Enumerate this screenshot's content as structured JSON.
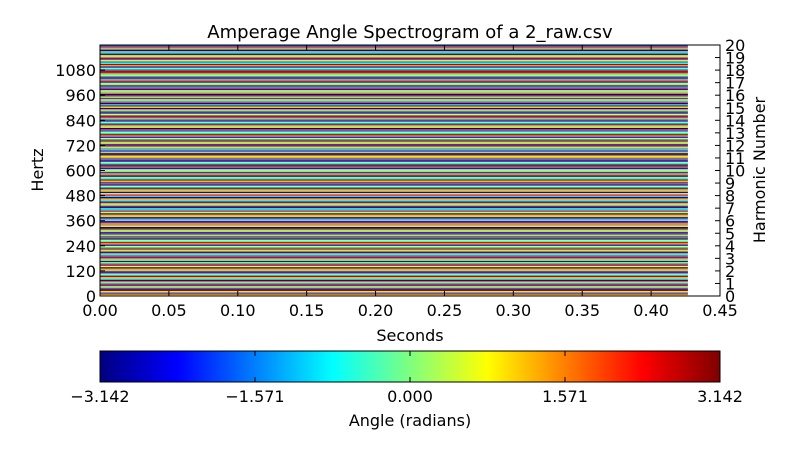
{
  "chart_data": {
    "type": "heatmap",
    "title": "Amperage Angle Spectrogram of a 2_raw.csv",
    "xlabel": "Seconds",
    "ylabel": "Hertz",
    "y2label": "Harmonic Number",
    "xlim": [
      0.0,
      0.45
    ],
    "ylim": [
      0,
      1200
    ],
    "y2lim": [
      0,
      20
    ],
    "data_x_extent": [
      0.0,
      0.4267
    ],
    "data_y_extent": [
      0,
      1200
    ],
    "x_ticks": [
      "0.00",
      "0.05",
      "0.10",
      "0.15",
      "0.20",
      "0.25",
      "0.30",
      "0.35",
      "0.40",
      "0.45"
    ],
    "y_ticks": [
      "0",
      "120",
      "240",
      "360",
      "480",
      "600",
      "720",
      "840",
      "960",
      "1080"
    ],
    "y2_ticks": [
      "0",
      "1",
      "2",
      "3",
      "4",
      "5",
      "6",
      "7",
      "8",
      "9",
      "10",
      "11",
      "12",
      "13",
      "14",
      "15",
      "16",
      "17",
      "18",
      "19",
      "20"
    ],
    "frequency_bin_hz": 6,
    "bin_angles": [
      0.4,
      2.1,
      -1.6,
      0.9,
      3.0,
      -2.6,
      1.4,
      -0.3,
      2.6,
      -1.9,
      0.1,
      1.8,
      -2.9,
      -0.9,
      1.0,
      2.8,
      -1.2,
      0.6,
      -2.4,
      2.2,
      -0.5,
      1.5,
      -3.0,
      0.8,
      2.4,
      -1.7,
      0.2,
      3.1,
      -0.8,
      1.2,
      -2.2,
      2.0,
      -1.4,
      0.5,
      -2.8,
      1.7,
      -0.1,
      2.9,
      -1.1,
      0.7,
      -2.5,
      1.3,
      2.5,
      -0.6,
      0.3,
      -3.1,
      1.9,
      -1.5,
      0.0,
      2.7,
      -2.0,
      1.1,
      -0.4,
      3.0,
      -2.7,
      0.9,
      1.6,
      -1.0,
      2.3,
      -2.3,
      0.4,
      -1.8,
      2.8,
      -0.2,
      1.4,
      -2.9,
      0.6,
      2.1,
      -1.3,
      -0.7,
      3.1,
      -2.1,
      1.0,
      -0.5,
      2.6,
      -1.6,
      0.2,
      1.8,
      -3.0,
      -0.9,
      2.4,
      0.8,
      -2.4,
      1.5,
      -0.3,
      2.9,
      -1.2,
      0.5,
      -2.6,
      2.0,
      -1.7,
      1.2,
      3.0,
      -0.6,
      0.1,
      -2.8,
      1.7,
      -1.1,
      2.5,
      -0.1,
      0.7,
      -2.2,
      1.9,
      -1.9,
      3.1,
      -0.8,
      0.3,
      -2.5,
      2.2,
      -1.4,
      1.3,
      0.9,
      -3.1,
      2.7,
      -0.4,
      -2.0,
      1.6,
      -1.0,
      0.0,
      2.3,
      -2.7,
      1.1,
      -0.2,
      2.8,
      -1.5,
      0.6,
      -2.3,
      1.4,
      3.0,
      -0.9,
      0.4,
      -1.8,
      2.1,
      -2.9,
      1.0,
      -0.5,
      2.6,
      -1.3,
      0.2,
      -2.6,
      1.8,
      -0.7,
      2.4,
      -2.1,
      0.8,
      -1.6,
      3.1,
      -0.3,
      1.5,
      -2.4,
      0.5,
      2.9,
      -1.1,
      -2.8,
      2.0,
      -0.6,
      1.2,
      -1.9,
      0.1,
      2.5,
      -3.0,
      1.7,
      -0.8,
      0.7,
      -2.2,
      2.2,
      -1.4,
      3.0,
      -0.1,
      0.3,
      -2.5,
      1.9,
      -1.0,
      2.7,
      -2.0,
      0.9,
      -0.4,
      1.6,
      -3.1,
      2.3,
      -1.2,
      0.0,
      -2.7,
      1.3,
      2.8,
      -0.6,
      -1.7,
      0.6,
      2.1,
      -2.3,
      1.0,
      -0.2,
      3.1,
      -1.5,
      0.4,
      -2.9,
      1.8,
      -0.9,
      2.4,
      -1.8,
      0.2,
      2.6,
      -2.6,
      1.4,
      -0.5,
      0.8,
      -1.3,
      3.0,
      -2.1,
      1.1,
      -0.3,
      2.0,
      -2.8,
      0.5,
      1.7,
      -1.1,
      2.9,
      -0.7,
      -2.4,
      1.5,
      0.1,
      -1.6,
      2.5,
      -3.0,
      0.9,
      -0.1,
      2.2,
      -2.0,
      1.2,
      0.6
    ]
  },
  "colorbar": {
    "label": "Angle (radians)",
    "range": [
      -3.14159,
      3.14159
    ],
    "ticks": [
      "−3.142",
      "−1.571",
      "0.000",
      "1.571",
      "3.142"
    ],
    "colormap": "jet",
    "colors": [
      "#00007f",
      "#0000ff",
      "#007fff",
      "#00ffff",
      "#7fff7f",
      "#ffff00",
      "#ff7f00",
      "#ff0000",
      "#7f0000"
    ]
  }
}
